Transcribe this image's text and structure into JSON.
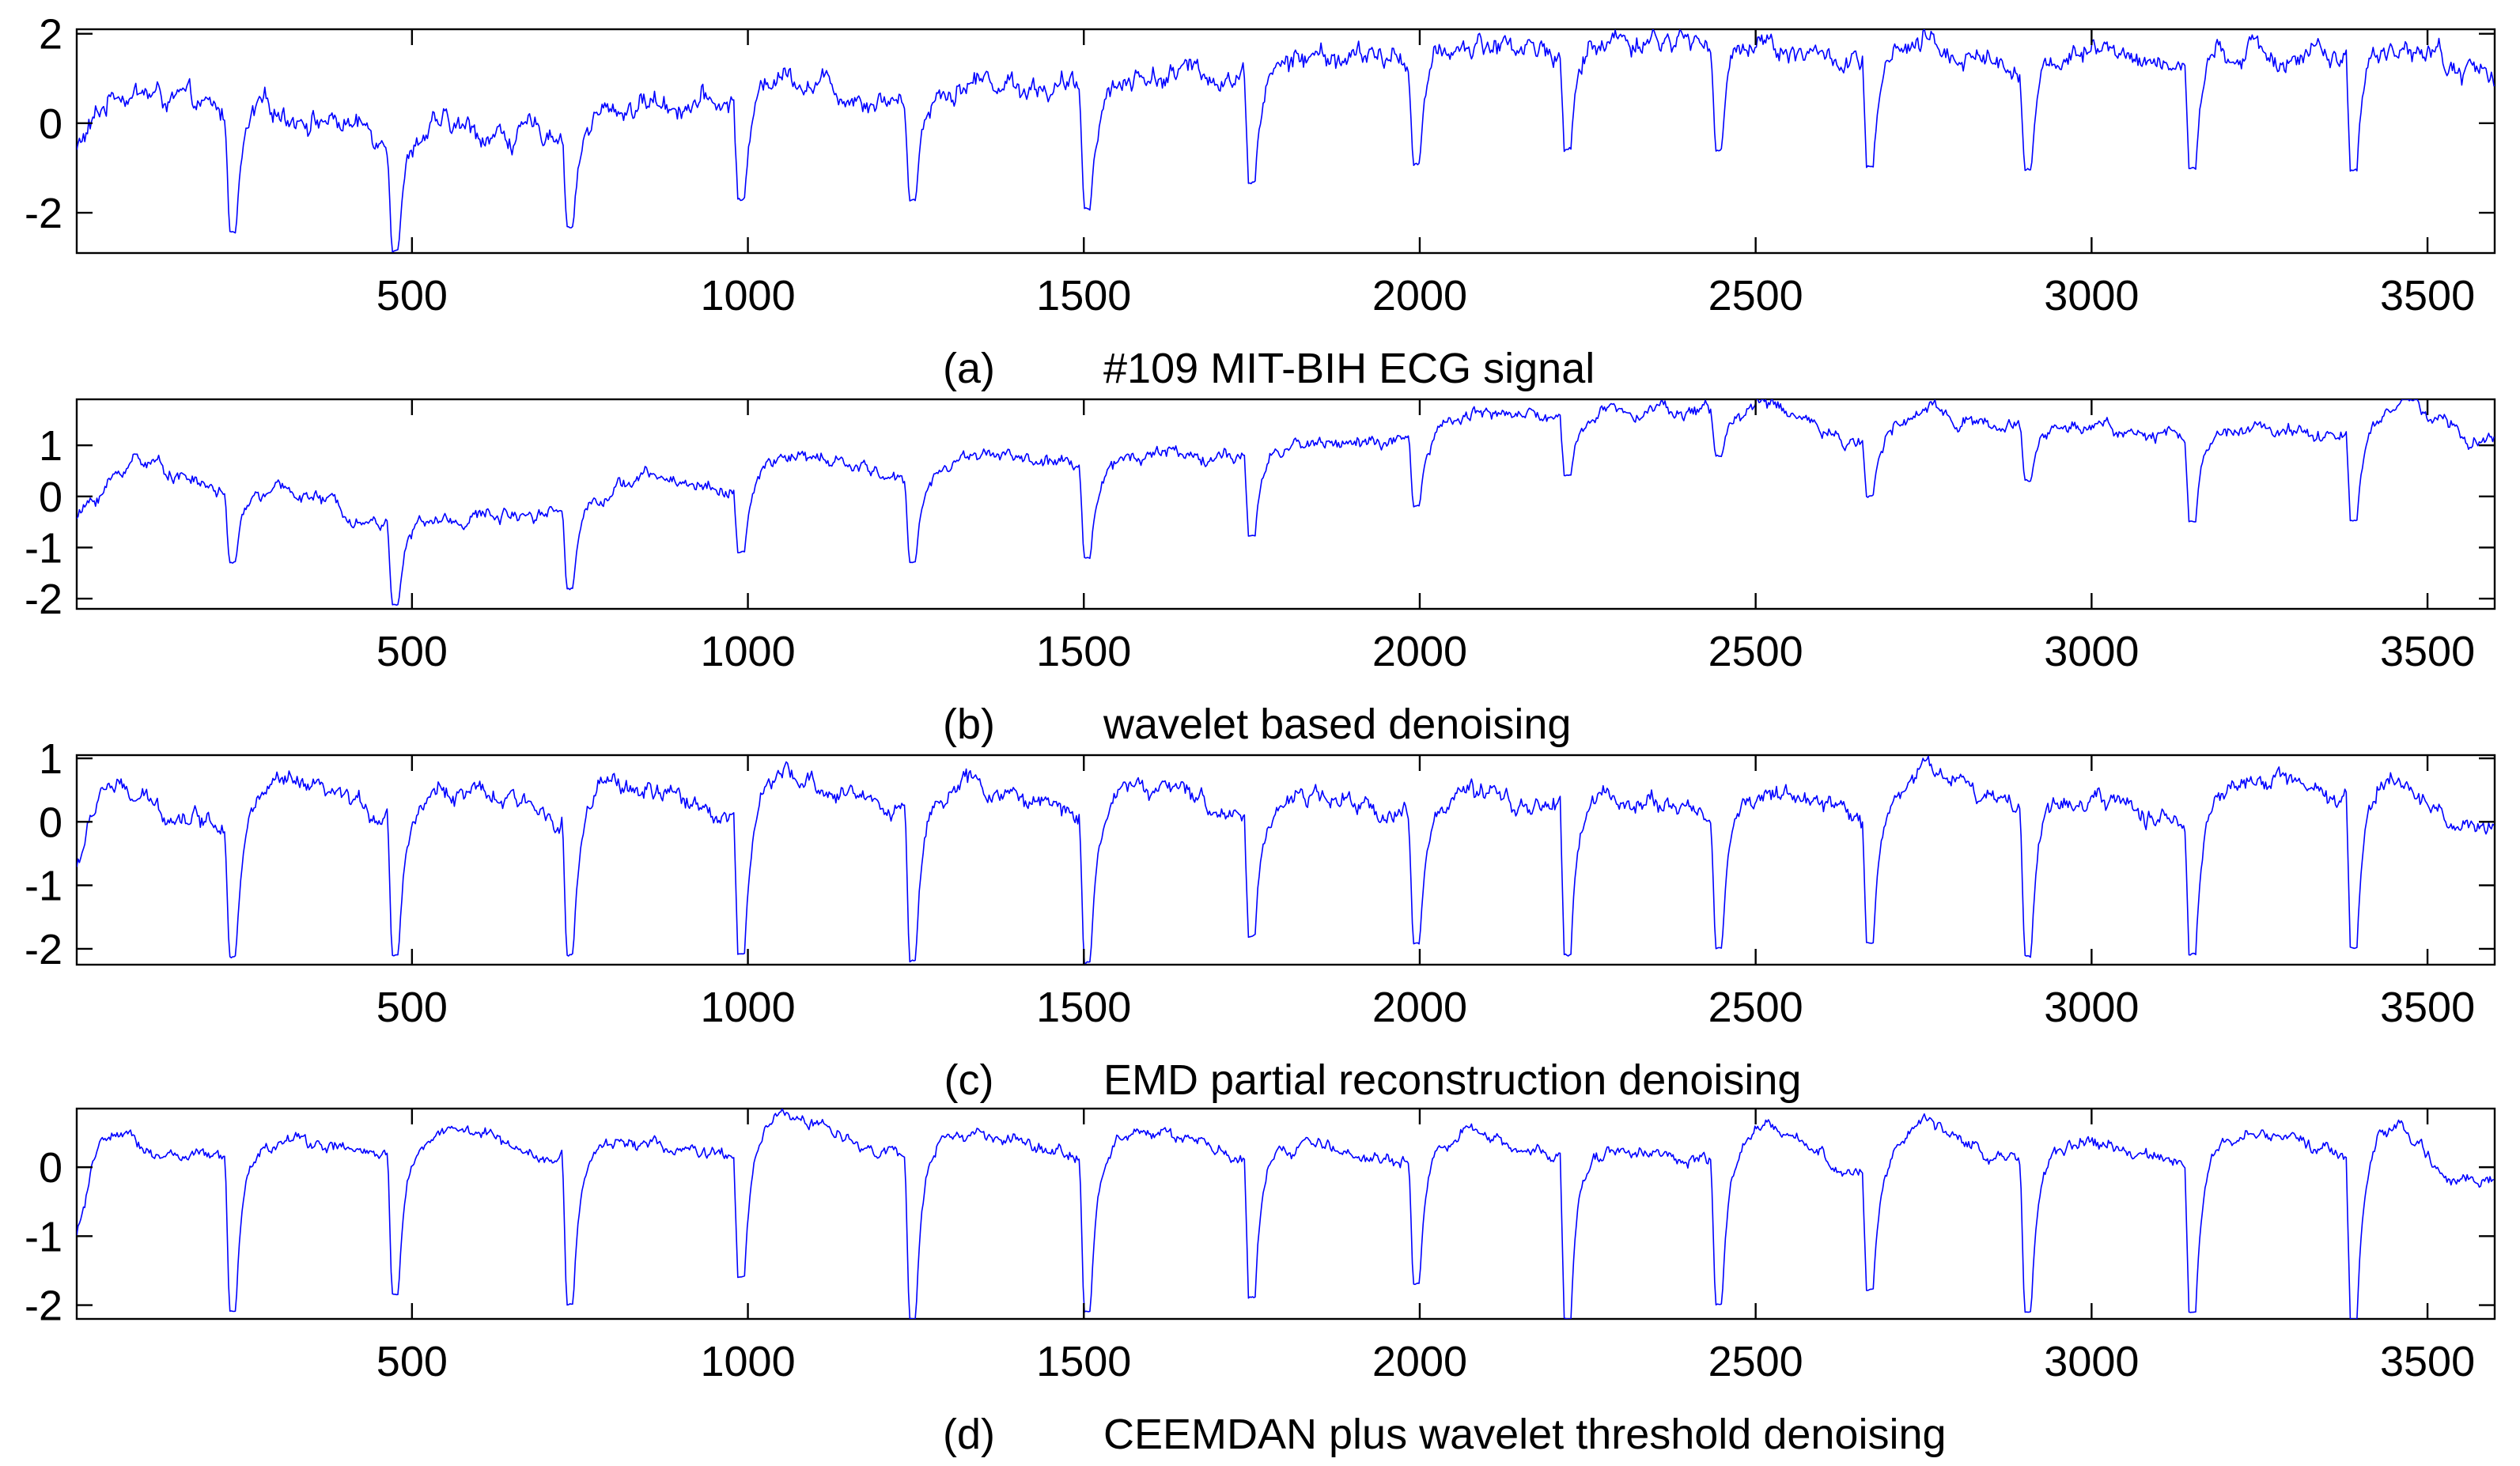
{
  "chart_data": [
    {
      "type": "line",
      "panel_label": "(a)",
      "title": "#109 MIT-BIH ECG signal",
      "xlabel": "",
      "ylabel": "",
      "xlim": [
        1,
        3600
      ],
      "ylim": [
        -2.9,
        2.1
      ],
      "x_ticks": [
        500,
        1000,
        1500,
        2000,
        2500,
        3000,
        3500
      ],
      "y_ticks": [
        -2,
        0,
        2
      ],
      "grid": false,
      "series_color": "#0000ff",
      "beats": [
        {
          "x": 228,
          "min": -2.4
        },
        {
          "x": 470,
          "min": -2.8
        },
        {
          "x": 730,
          "min": -2.3
        },
        {
          "x": 985,
          "min": -1.7
        },
        {
          "x": 1240,
          "min": -1.7
        },
        {
          "x": 1500,
          "min": -1.9
        },
        {
          "x": 1745,
          "min": -1.3
        },
        {
          "x": 1990,
          "min": -0.9
        },
        {
          "x": 2215,
          "min": -0.6
        },
        {
          "x": 2440,
          "min": -0.6
        },
        {
          "x": 2665,
          "min": -1.0
        },
        {
          "x": 2900,
          "min": -1.0
        },
        {
          "x": 3145,
          "min": -1.0
        },
        {
          "x": 3385,
          "min": -1.1
        }
      ],
      "baseline": {
        "x": [
          1,
          60,
          150,
          228,
          300,
          400,
          470,
          550,
          650,
          730,
          850,
          985,
          1050,
          1150,
          1240,
          1350,
          1500,
          1600,
          1745,
          1850,
          1990,
          2100,
          2215,
          2300,
          2440,
          2500,
          2665,
          2750,
          2900,
          3000,
          3145,
          3250,
          3385,
          3470,
          3560,
          3600
        ],
        "y": [
          -0.6,
          0.8,
          0.5,
          0.1,
          0.3,
          0.0,
          -0.3,
          -0.1,
          -0.3,
          -0.1,
          0.5,
          0.4,
          1.2,
          0.7,
          0.5,
          1.0,
          0.7,
          1.1,
          1.1,
          1.5,
          1.4,
          1.8,
          1.6,
          1.9,
          1.8,
          1.9,
          1.2,
          1.7,
          1.3,
          1.6,
          1.3,
          1.6,
          1.4,
          1.8,
          1.1,
          1.2
        ]
      },
      "noise_amplitude": 0.35
    },
    {
      "type": "line",
      "panel_label": "(b)",
      "title": "wavelet based denoising",
      "xlabel": "",
      "ylabel": "",
      "xlim": [
        1,
        3600
      ],
      "ylim": [
        -2.2,
        1.9
      ],
      "x_ticks": [
        500,
        1000,
        1500,
        2000,
        2500,
        3000,
        3500
      ],
      "y_ticks": [
        -2,
        -1,
        0,
        1
      ],
      "grid": false,
      "series_color": "#0000ff",
      "beats": [
        {
          "x": 228,
          "min": -1.3
        },
        {
          "x": 470,
          "min": -2.1
        },
        {
          "x": 730,
          "min": -1.8
        },
        {
          "x": 985,
          "min": -1.1
        },
        {
          "x": 1240,
          "min": -1.3
        },
        {
          "x": 1500,
          "min": -1.2
        },
        {
          "x": 1745,
          "min": -0.8
        },
        {
          "x": 1990,
          "min": -0.2
        },
        {
          "x": 2215,
          "min": 0.4
        },
        {
          "x": 2440,
          "min": 0.8
        },
        {
          "x": 2665,
          "min": 0.0
        },
        {
          "x": 2900,
          "min": 0.3
        },
        {
          "x": 3145,
          "min": -0.5
        },
        {
          "x": 3385,
          "min": -0.5
        }
      ],
      "baseline": {
        "x": [
          1,
          90,
          228,
          330,
          470,
          600,
          730,
          850,
          985,
          1050,
          1150,
          1240,
          1350,
          1500,
          1600,
          1745,
          1850,
          1990,
          2080,
          2215,
          2330,
          2440,
          2520,
          2665,
          2760,
          2900,
          3000,
          3145,
          3260,
          3385,
          3470,
          3560,
          3600
        ],
        "y": [
          -0.4,
          0.8,
          0.0,
          0.1,
          -0.6,
          -0.4,
          -0.2,
          0.4,
          0.1,
          0.8,
          0.6,
          0.3,
          0.9,
          0.5,
          0.9,
          0.7,
          1.1,
          1.0,
          1.7,
          1.5,
          1.8,
          1.6,
          1.8,
          1.0,
          1.7,
          1.3,
          1.4,
          1.1,
          1.4,
          1.2,
          1.9,
          1.0,
          1.2
        ]
      },
      "noise_amplitude": 0.18
    },
    {
      "type": "line",
      "panel_label": "(c)",
      "title": "EMD partial reconstruction denoising",
      "xlabel": "",
      "ylabel": "",
      "xlim": [
        1,
        3600
      ],
      "ylim": [
        -2.25,
        1.05
      ],
      "x_ticks": [
        500,
        1000,
        1500,
        2000,
        2500,
        3000,
        3500
      ],
      "y_ticks": [
        -2,
        -1,
        0,
        1
      ],
      "grid": false,
      "series_color": "#0000ff",
      "beats": [
        {
          "x": 228,
          "min": -2.1
        },
        {
          "x": 470,
          "min": -2.1
        },
        {
          "x": 730,
          "min": -2.1
        },
        {
          "x": 985,
          "min": -2.1
        },
        {
          "x": 1240,
          "min": -2.2
        },
        {
          "x": 1500,
          "min": -2.2
        },
        {
          "x": 1745,
          "min": -1.8
        },
        {
          "x": 1990,
          "min": -1.9
        },
        {
          "x": 2215,
          "min": -2.1
        },
        {
          "x": 2440,
          "min": -2.0
        },
        {
          "x": 2665,
          "min": -1.9
        },
        {
          "x": 2900,
          "min": -2.1
        },
        {
          "x": 3145,
          "min": -2.1
        },
        {
          "x": 3385,
          "min": -2.0
        }
      ],
      "baseline": {
        "x": [
          1,
          40,
          120,
          228,
          300,
          470,
          550,
          730,
          800,
          985,
          1050,
          1240,
          1320,
          1500,
          1580,
          1745,
          1820,
          1990,
          2060,
          2215,
          2290,
          2440,
          2520,
          2665,
          2750,
          2900,
          2980,
          3145,
          3240,
          3385,
          3460,
          3540,
          3600
        ],
        "y": [
          -0.7,
          0.6,
          0.2,
          0.0,
          0.6,
          0.1,
          0.5,
          0.1,
          0.6,
          0.1,
          0.7,
          0.2,
          0.6,
          0.1,
          0.6,
          0.1,
          0.4,
          0.1,
          0.4,
          0.2,
          0.4,
          0.1,
          0.5,
          0.0,
          0.9,
          0.2,
          0.4,
          0.0,
          0.7,
          0.2,
          0.7,
          -0.1,
          -0.1
        ]
      },
      "noise_amplitude": 0.2
    },
    {
      "type": "line",
      "panel_label": "(d)",
      "title": "CEEMDAN plus wavelet threshold denoising",
      "xlabel": "",
      "ylabel": "",
      "xlim": [
        1,
        3600
      ],
      "ylim": [
        -2.2,
        0.85
      ],
      "x_ticks": [
        500,
        1000,
        1500,
        2000,
        2500,
        3000,
        3500
      ],
      "y_ticks": [
        -2,
        -1,
        0
      ],
      "grid": false,
      "series_color": "#0000ff",
      "beats": [
        {
          "x": 228,
          "min": -2.1
        },
        {
          "x": 470,
          "min": -1.85
        },
        {
          "x": 730,
          "min": -2.0
        },
        {
          "x": 985,
          "min": -1.6
        },
        {
          "x": 1240,
          "min": -2.2
        },
        {
          "x": 1500,
          "min": -2.1
        },
        {
          "x": 1745,
          "min": -1.9
        },
        {
          "x": 1990,
          "min": -1.7
        },
        {
          "x": 2215,
          "min": -2.2
        },
        {
          "x": 2440,
          "min": -2.0
        },
        {
          "x": 2665,
          "min": -1.8
        },
        {
          "x": 2900,
          "min": -2.1
        },
        {
          "x": 3145,
          "min": -2.1
        },
        {
          "x": 3385,
          "min": -2.2
        }
      ],
      "baseline": {
        "x": [
          1,
          40,
          120,
          228,
          330,
          470,
          560,
          730,
          820,
          985,
          1050,
          1240,
          1330,
          1500,
          1580,
          1745,
          1830,
          1990,
          2070,
          2215,
          2300,
          2440,
          2520,
          2665,
          2750,
          2900,
          2990,
          3145,
          3240,
          3385,
          3460,
          3540,
          3600
        ],
        "y": [
          -1.0,
          0.5,
          0.2,
          0.1,
          0.4,
          0.1,
          0.6,
          0.1,
          0.4,
          0.1,
          0.8,
          0.1,
          0.5,
          0.1,
          0.6,
          0.1,
          0.3,
          0.1,
          0.5,
          0.1,
          0.3,
          0.0,
          0.6,
          -0.2,
          0.7,
          0.0,
          0.4,
          0.0,
          0.6,
          0.1,
          0.6,
          -0.2,
          -0.2
        ]
      },
      "noise_amplitude": 0.12
    }
  ]
}
